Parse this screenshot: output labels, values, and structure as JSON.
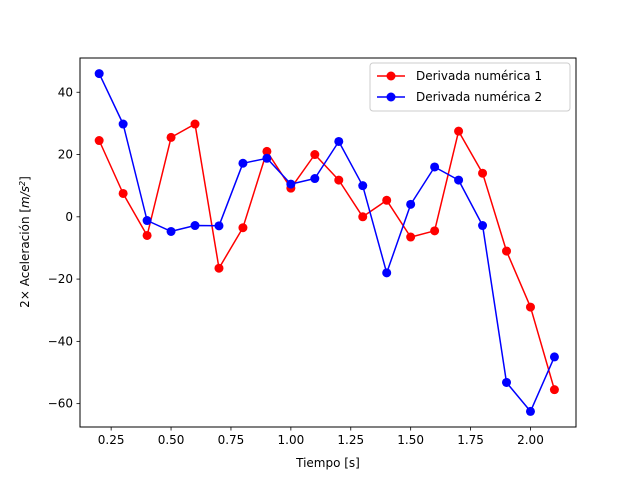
{
  "chart_data": {
    "type": "line",
    "xlabel": "Tiempo [s]",
    "ylabel_prefix": "2× Aceleración [",
    "ylabel_unit": "m/s",
    "ylabel_exp": "2",
    "ylabel_suffix": "]",
    "xlim": [
      0.12,
      2.19
    ],
    "ylim": [
      -67.5,
      51
    ],
    "xticks": [
      0.25,
      0.5,
      0.75,
      1.0,
      1.25,
      1.5,
      1.75,
      2.0
    ],
    "xtick_labels": [
      "0.25",
      "0.50",
      "0.75",
      "1.00",
      "1.25",
      "1.50",
      "1.75",
      "2.00"
    ],
    "yticks": [
      -60,
      -40,
      -20,
      0,
      20,
      40
    ],
    "ytick_labels": [
      "−60",
      "−40",
      "−20",
      "0",
      "20",
      "40"
    ],
    "grid": false,
    "legend_position": "top-right",
    "x": [
      0.2,
      0.3,
      0.4,
      0.5,
      0.6,
      0.7,
      0.8,
      0.9,
      1.0,
      1.1,
      1.2,
      1.3,
      1.4,
      1.5,
      1.6,
      1.7,
      1.8,
      1.9,
      2.0,
      2.1
    ],
    "series": [
      {
        "name": "Derivada numérica 1",
        "color": "#ff0000",
        "values": [
          24.5,
          7.5,
          -6,
          25.5,
          29.8,
          -16.5,
          -3.5,
          21,
          9.2,
          20,
          11.8,
          0,
          5.3,
          -6.5,
          -4.5,
          27.5,
          14,
          -11,
          -29,
          -55.5
        ]
      },
      {
        "name": "Derivada numérica 2",
        "color": "#0000ff",
        "values": [
          46,
          29.8,
          -1.2,
          -4.7,
          -2.8,
          -2.9,
          17.2,
          18.8,
          10.5,
          12.3,
          24.2,
          10,
          -18,
          4,
          16,
          11.8,
          -2.8,
          -53.2,
          -62.5,
          -45
        ]
      }
    ]
  }
}
